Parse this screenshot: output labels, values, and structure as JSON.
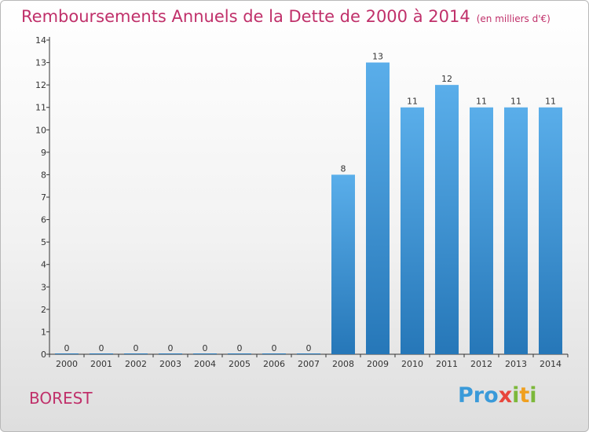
{
  "header": {
    "title": "Remboursements Annuels de la Dette de 2000 à 2014",
    "unit": "(en milliers d'€)"
  },
  "footer": {
    "commune": "BOREST",
    "logo_letters": [
      {
        "ch": "P",
        "color": "#3a9ad9"
      },
      {
        "ch": "r",
        "color": "#3a9ad9"
      },
      {
        "ch": "o",
        "color": "#3a9ad9"
      },
      {
        "ch": "x",
        "color": "#e8463c"
      },
      {
        "ch": "i",
        "color": "#7cb83a"
      },
      {
        "ch": "t",
        "color": "#f0a020"
      },
      {
        "ch": "i",
        "color": "#7cb83a"
      }
    ]
  },
  "colors": {
    "bar_top": "#5aaeea",
    "bar_bottom": "#2677b8",
    "axis": "#333333",
    "title": "#c0306a"
  },
  "chart_data": {
    "type": "bar",
    "title": "Remboursements Annuels de la Dette de 2000 à 2014",
    "ylabel": "",
    "xlabel": "",
    "categories": [
      "2000",
      "2001",
      "2002",
      "2003",
      "2004",
      "2005",
      "2006",
      "2007",
      "2008",
      "2009",
      "2010",
      "2011",
      "2012",
      "2013",
      "2014"
    ],
    "values": [
      0,
      0,
      0,
      0,
      0,
      0,
      0,
      0,
      8,
      13,
      11,
      12,
      11,
      11,
      11
    ],
    "ylim": [
      0,
      14
    ],
    "yticks": [
      0,
      1,
      2,
      3,
      4,
      5,
      6,
      7,
      8,
      9,
      10,
      11,
      12,
      13,
      14
    ],
    "ytick_labels": [
      "0",
      "1",
      "2",
      "3",
      "4",
      "5",
      "6",
      "7",
      "8",
      "9",
      "10",
      "11",
      "12",
      "13",
      "14"
    ],
    "grid": false
  }
}
